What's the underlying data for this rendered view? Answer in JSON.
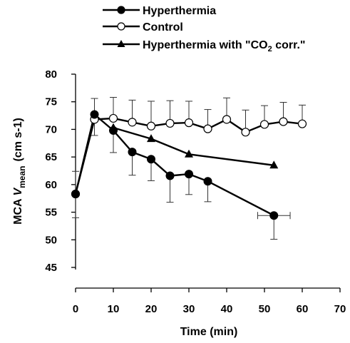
{
  "chart_data": {
    "type": "line",
    "xlabel": "Time (min)",
    "ylabel": {
      "prefix": "MCA ",
      "var": "V",
      "sub": "mean",
      "units": "(cm s-1)"
    },
    "xlim": [
      0,
      70
    ],
    "ylim": [
      45,
      80
    ],
    "x_ticks": [
      0,
      10,
      20,
      30,
      40,
      50,
      60,
      70
    ],
    "y_ticks": [
      45,
      50,
      55,
      60,
      65,
      70,
      75,
      80
    ],
    "grid": false,
    "legend_position": "top-left",
    "series": [
      {
        "name": "Hyperthermia",
        "marker": "filled-circle",
        "points": [
          {
            "x": 0,
            "y": 58.3,
            "yerr_hi": 4.1,
            "yerr_lo": 4.3
          },
          {
            "x": 5,
            "y": 72.7,
            "yerr_hi": 2.9,
            "yerr_lo": 3.8
          },
          {
            "x": 10,
            "y": 69.8,
            "yerr_lo": 4.0
          },
          {
            "x": 15,
            "y": 65.9,
            "yerr_lo": 4.2
          },
          {
            "x": 20,
            "y": 64.6,
            "yerr_lo": 3.9
          },
          {
            "x": 25,
            "y": 61.6,
            "yerr_lo": 4.8
          },
          {
            "x": 30,
            "y": 61.9,
            "yerr_lo": 3.7
          },
          {
            "x": 35,
            "y": 60.6,
            "yerr_lo": 3.7
          },
          {
            "x": 52.5,
            "y": 54.4,
            "yerr_lo": 4.3,
            "xerr": 4.3
          }
        ]
      },
      {
        "name": "Control",
        "marker": "open-circle",
        "points": [
          {
            "x": 0,
            "y": 58.3
          },
          {
            "x": 5,
            "y": 71.8
          },
          {
            "x": 10,
            "y": 72.0,
            "yerr_hi": 3.8
          },
          {
            "x": 15,
            "y": 71.3,
            "yerr_hi": 4.0
          },
          {
            "x": 20,
            "y": 70.6,
            "yerr_hi": 4.5
          },
          {
            "x": 25,
            "y": 71.1,
            "yerr_hi": 4.1
          },
          {
            "x": 30,
            "y": 71.2,
            "yerr_hi": 3.9
          },
          {
            "x": 35,
            "y": 70.1,
            "yerr_hi": 3.5
          },
          {
            "x": 40,
            "y": 71.8,
            "yerr_hi": 3.9
          },
          {
            "x": 45,
            "y": 69.5,
            "yerr_hi": 4.0
          },
          {
            "x": 50,
            "y": 70.9,
            "yerr_hi": 3.4
          },
          {
            "x": 55,
            "y": 71.4,
            "yerr_hi": 3.5
          },
          {
            "x": 60,
            "y": 71.0,
            "yerr_hi": 3.4
          }
        ]
      },
      {
        "name": "Hyperthermia with \"CO2 corr.\"",
        "name_parts": [
          "Hyperthermia with \"CO",
          "2",
          " corr.\""
        ],
        "marker": "filled-triangle",
        "points": [
          {
            "x": 10,
            "y": 70.3
          },
          {
            "x": 20,
            "y": 68.3
          },
          {
            "x": 30,
            "y": 65.5
          },
          {
            "x": 52.5,
            "y": 63.5
          }
        ]
      }
    ]
  }
}
